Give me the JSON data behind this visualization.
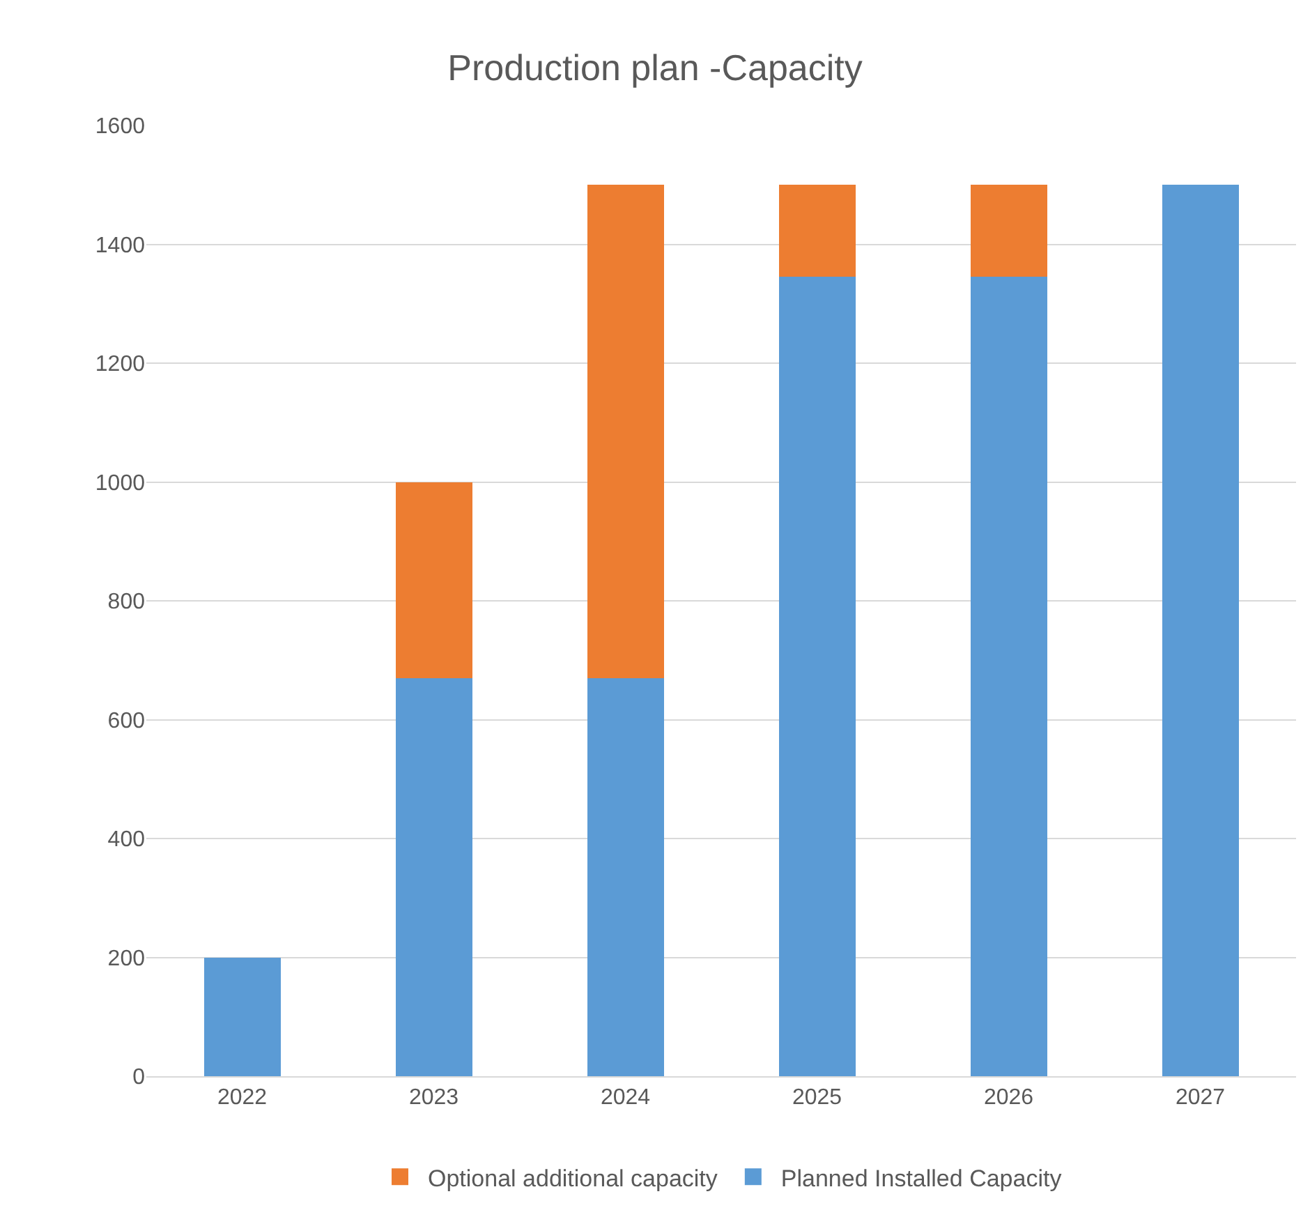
{
  "chart_data": {
    "type": "bar",
    "title": "Production plan -Capacity",
    "stacked": true,
    "categories": [
      "2022",
      "2023",
      "2024",
      "2025",
      "2026",
      "2027"
    ],
    "series": [
      {
        "name": "Planned Installed Capacity",
        "color": "#5b9bd5",
        "values": [
          200,
          670,
          670,
          1345,
          1345,
          1500
        ]
      },
      {
        "name": "Optional additional capacity",
        "color": "#ed7d31",
        "values": [
          null,
          330,
          830,
          155,
          155,
          null
        ]
      }
    ],
    "ylim": [
      0,
      1600
    ],
    "yticks": [
      0,
      200,
      400,
      600,
      800,
      1000,
      1200,
      1400,
      1600
    ],
    "grid": "y",
    "legend": "bottom"
  }
}
